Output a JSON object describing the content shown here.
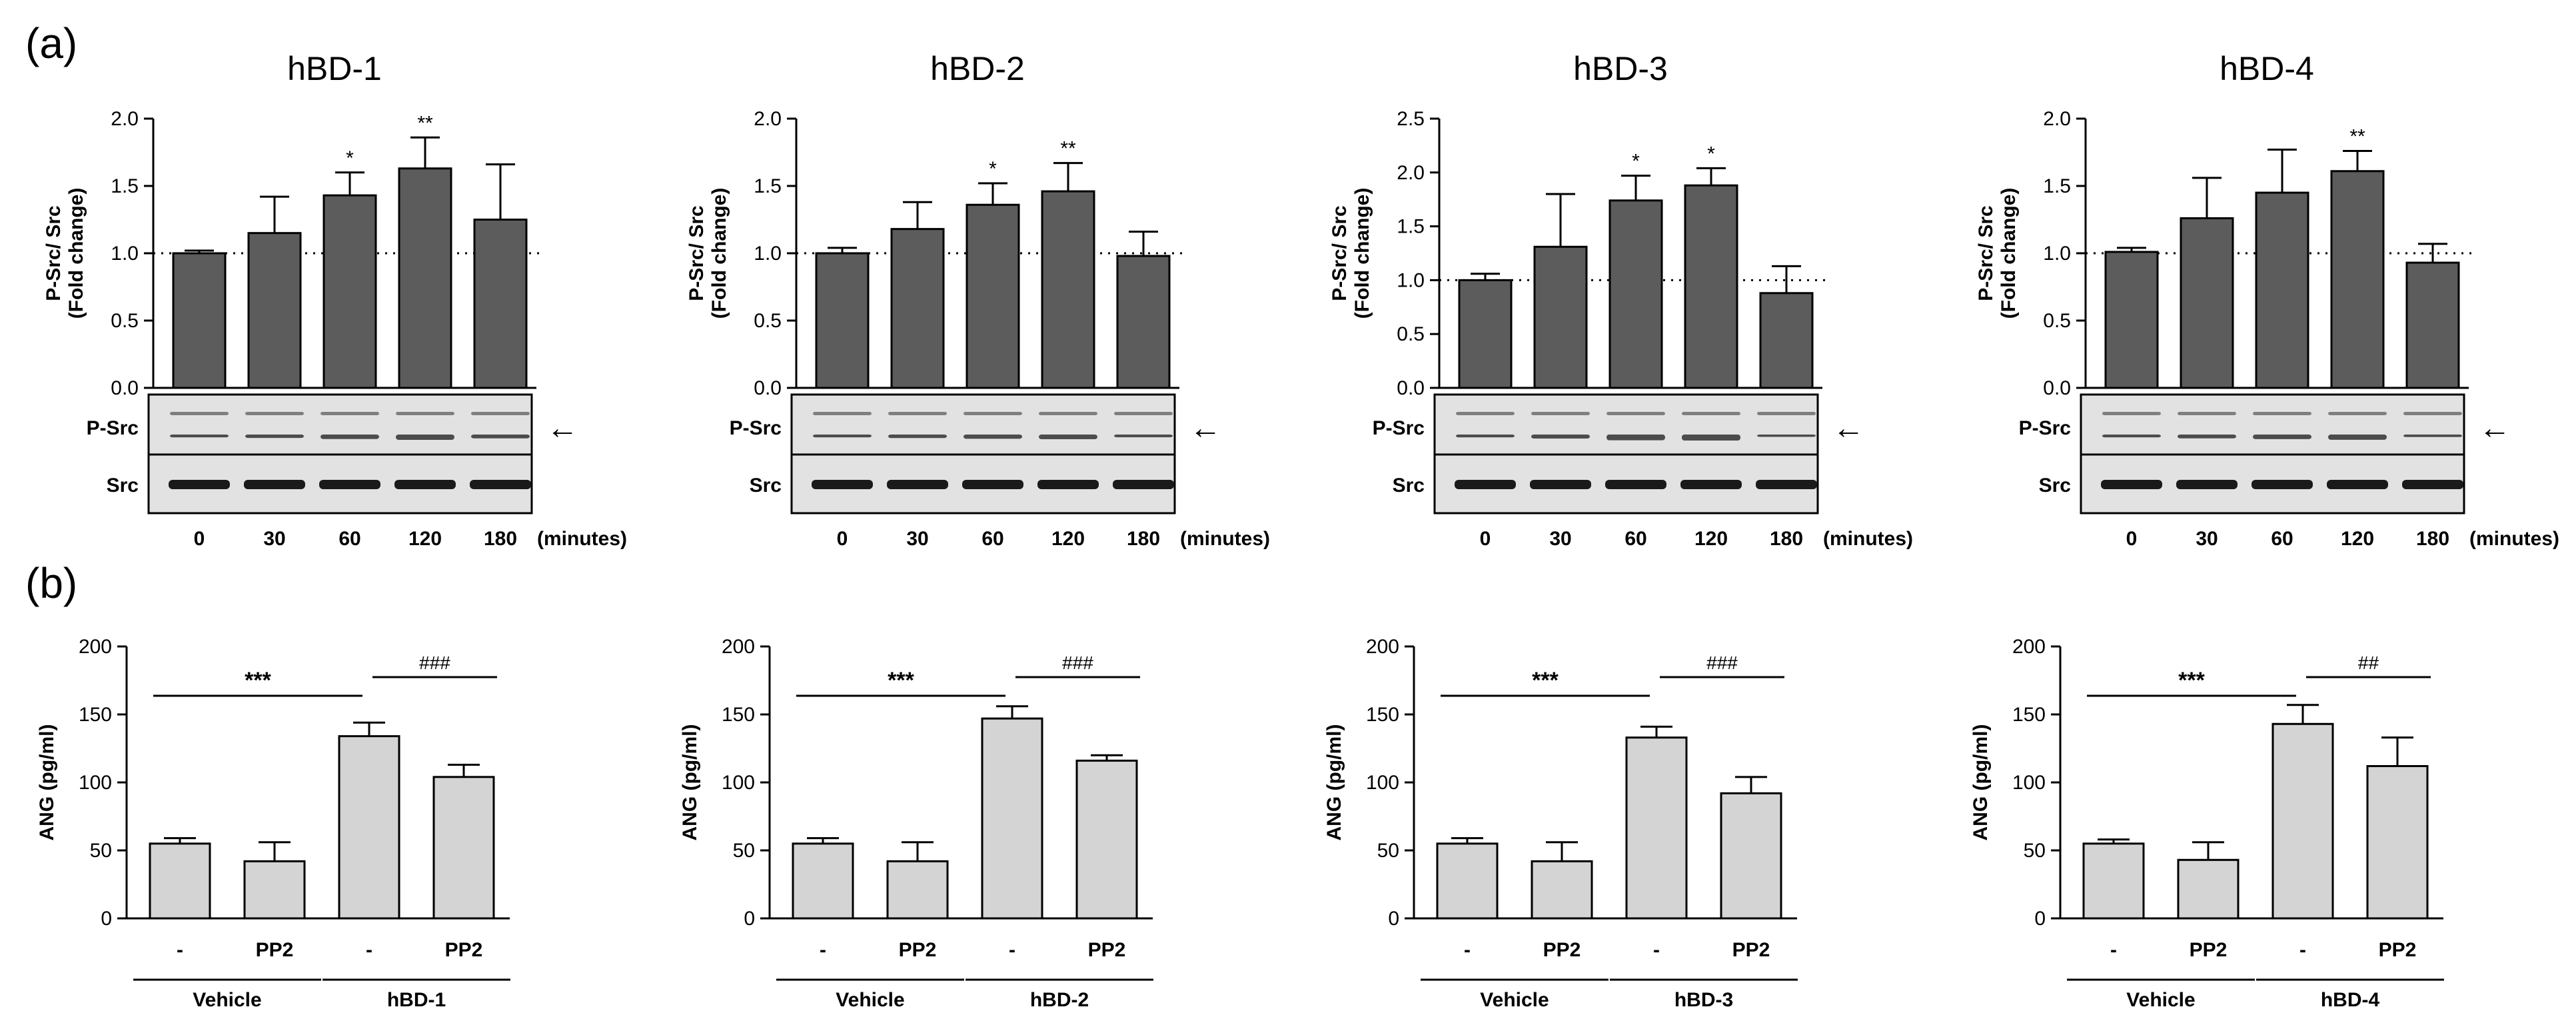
{
  "panel_labels": {
    "a": "(a)",
    "b": "(b)"
  },
  "colors": {
    "top_bar": "#5c5c5c",
    "bottom_bar": "#d4d4d4",
    "axis": "#000000",
    "blot_bg": "#e2e2e2",
    "band": "#1a1a1a"
  },
  "blot_labels": {
    "psrc": "P-Src",
    "src": "Src"
  },
  "arrow_glyph": "←",
  "minutes_label": "(minutes)",
  "chart_data": [
    {
      "id": "a1",
      "type": "bar",
      "title": "hBD-1",
      "ylabel_line1": "P-Src/ Src",
      "ylabel_line2": "(Fold change)",
      "categories": [
        "0",
        "30",
        "60",
        "120",
        "180"
      ],
      "values": [
        1.0,
        1.15,
        1.43,
        1.63,
        1.25
      ],
      "errors": [
        0.02,
        0.27,
        0.17,
        0.23,
        0.41
      ],
      "significance": [
        "",
        "",
        "*",
        "**",
        ""
      ],
      "ylim": [
        0,
        2.0
      ],
      "yticks": [
        "0.0",
        "0.5",
        "1.0",
        "1.5",
        "2.0"
      ],
      "reference_line": 1.0
    },
    {
      "id": "a2",
      "type": "bar",
      "title": "hBD-2",
      "ylabel_line1": "P-Src/ Src",
      "ylabel_line2": "(Fold change)",
      "categories": [
        "0",
        "30",
        "60",
        "120",
        "180"
      ],
      "values": [
        1.0,
        1.18,
        1.36,
        1.46,
        0.98
      ],
      "errors": [
        0.04,
        0.2,
        0.16,
        0.21,
        0.18
      ],
      "significance": [
        "",
        "",
        "*",
        "**",
        ""
      ],
      "ylim": [
        0,
        2.0
      ],
      "yticks": [
        "0.0",
        "0.5",
        "1.0",
        "1.5",
        "2.0"
      ],
      "reference_line": 1.0
    },
    {
      "id": "a3",
      "type": "bar",
      "title": "hBD-3",
      "ylabel_line1": "P-Src/ Src",
      "ylabel_line2": "(Fold change)",
      "categories": [
        "0",
        "30",
        "60",
        "120",
        "180"
      ],
      "values": [
        1.0,
        1.31,
        1.74,
        1.88,
        0.88
      ],
      "errors": [
        0.06,
        0.49,
        0.23,
        0.16,
        0.25
      ],
      "significance": [
        "",
        "",
        "*",
        "*",
        ""
      ],
      "ylim": [
        0,
        2.5
      ],
      "yticks": [
        "0.0",
        "0.5",
        "1.0",
        "1.5",
        "2.0",
        "2.5"
      ],
      "reference_line": 1.0
    },
    {
      "id": "a4",
      "type": "bar",
      "title": "hBD-4",
      "ylabel_line1": "P-Src/ Src",
      "ylabel_line2": "(Fold change)",
      "categories": [
        "0",
        "30",
        "60",
        "120",
        "180"
      ],
      "values": [
        1.01,
        1.26,
        1.45,
        1.61,
        0.93
      ],
      "errors": [
        0.03,
        0.3,
        0.32,
        0.15,
        0.14
      ],
      "significance": [
        "",
        "",
        "",
        "**",
        ""
      ],
      "ylim": [
        0,
        2.0
      ],
      "yticks": [
        "0.0",
        "0.5",
        "1.0",
        "1.5",
        "2.0"
      ],
      "reference_line": 1.0
    },
    {
      "id": "b1",
      "type": "bar",
      "ylabel": "ANG (pg/ml)",
      "categories": [
        "-",
        "PP2",
        "-",
        "PP2"
      ],
      "values": [
        55,
        42,
        134,
        104
      ],
      "errors": [
        4,
        14,
        10,
        9
      ],
      "ylim": [
        0,
        200
      ],
      "yticks": [
        "0",
        "50",
        "100",
        "150",
        "200"
      ],
      "comparisons": [
        {
          "from": 0,
          "to": 2,
          "label": "***"
        },
        {
          "from": 2,
          "to": 3,
          "label": "###"
        }
      ],
      "groups": [
        {
          "label": "Vehicle",
          "from": 0,
          "to": 1
        },
        {
          "label": "hBD-1",
          "from": 2,
          "to": 3
        }
      ]
    },
    {
      "id": "b2",
      "type": "bar",
      "ylabel": "ANG (pg/ml)",
      "categories": [
        "-",
        "PP2",
        "-",
        "PP2"
      ],
      "values": [
        55,
        42,
        147,
        116
      ],
      "errors": [
        4,
        14,
        9,
        4
      ],
      "ylim": [
        0,
        200
      ],
      "yticks": [
        "0",
        "50",
        "100",
        "150",
        "200"
      ],
      "comparisons": [
        {
          "from": 0,
          "to": 2,
          "label": "***"
        },
        {
          "from": 2,
          "to": 3,
          "label": "###"
        }
      ],
      "groups": [
        {
          "label": "Vehicle",
          "from": 0,
          "to": 1
        },
        {
          "label": "hBD-2",
          "from": 2,
          "to": 3
        }
      ]
    },
    {
      "id": "b3",
      "type": "bar",
      "ylabel": "ANG (pg/ml)",
      "categories": [
        "-",
        "PP2",
        "-",
        "PP2"
      ],
      "values": [
        55,
        42,
        133,
        92
      ],
      "errors": [
        4,
        14,
        8,
        12
      ],
      "ylim": [
        0,
        200
      ],
      "yticks": [
        "0",
        "50",
        "100",
        "150",
        "200"
      ],
      "comparisons": [
        {
          "from": 0,
          "to": 2,
          "label": "***"
        },
        {
          "from": 2,
          "to": 3,
          "label": "###"
        }
      ],
      "groups": [
        {
          "label": "Vehicle",
          "from": 0,
          "to": 1
        },
        {
          "label": "hBD-3",
          "from": 2,
          "to": 3
        }
      ]
    },
    {
      "id": "b4",
      "type": "bar",
      "ylabel": "ANG (pg/ml)",
      "categories": [
        "-",
        "PP2",
        "-",
        "PP2"
      ],
      "values": [
        55,
        43,
        143,
        112
      ],
      "errors": [
        3,
        13,
        14,
        21
      ],
      "ylim": [
        0,
        200
      ],
      "yticks": [
        "0",
        "50",
        "100",
        "150",
        "200"
      ],
      "comparisons": [
        {
          "from": 0,
          "to": 2,
          "label": "***"
        },
        {
          "from": 2,
          "to": 3,
          "label": "##"
        }
      ],
      "groups": [
        {
          "label": "Vehicle",
          "from": 0,
          "to": 1
        },
        {
          "label": "hBD-4",
          "from": 2,
          "to": 3
        }
      ]
    }
  ]
}
